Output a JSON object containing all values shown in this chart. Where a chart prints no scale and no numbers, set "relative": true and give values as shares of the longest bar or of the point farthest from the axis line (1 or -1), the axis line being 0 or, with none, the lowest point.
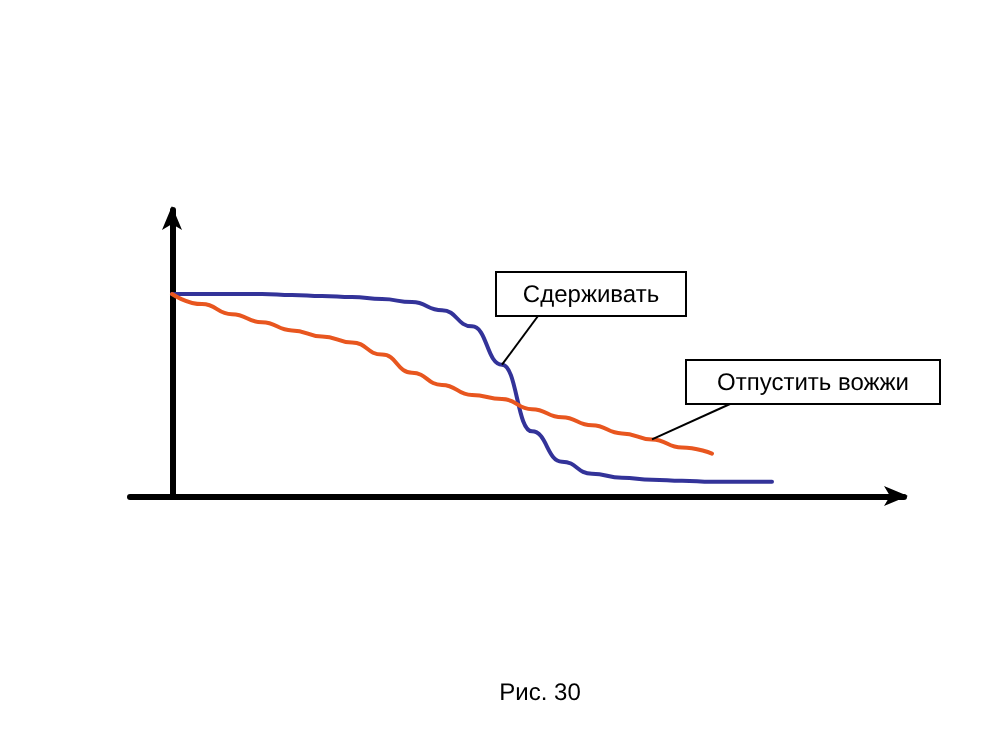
{
  "chart_data": {
    "type": "line",
    "relative": true,
    "categories": [
      null,
      null,
      null,
      null,
      null,
      null,
      null,
      null,
      null,
      null,
      null,
      null,
      null,
      null,
      null,
      null,
      null,
      null,
      null,
      null,
      null
    ],
    "series": [
      {
        "color": "#333399",
        "values": [
          1.0,
          1.0,
          1.0,
          1.0,
          0.995,
          0.99,
          0.985,
          0.975,
          0.96,
          0.92,
          0.84,
          0.65,
          0.32,
          0.17,
          0.11,
          0.09,
          0.08,
          0.075,
          0.07,
          0.07,
          0.07
        ]
      },
      {
        "color": "#e8561f",
        "values": [
          1.0,
          0.95,
          0.9,
          0.86,
          0.82,
          0.79,
          0.76,
          0.7,
          0.61,
          0.55,
          0.5,
          0.48,
          0.43,
          0.39,
          0.35,
          0.31,
          0.28,
          0.24,
          0.21,
          null,
          null
        ]
      }
    ],
    "annotations": [
      "Сдерживать",
      "Отпустить вожжи",
      "Рис. 30"
    ],
    "grid": false,
    "marker": "none",
    "line_style": "solid"
  }
}
